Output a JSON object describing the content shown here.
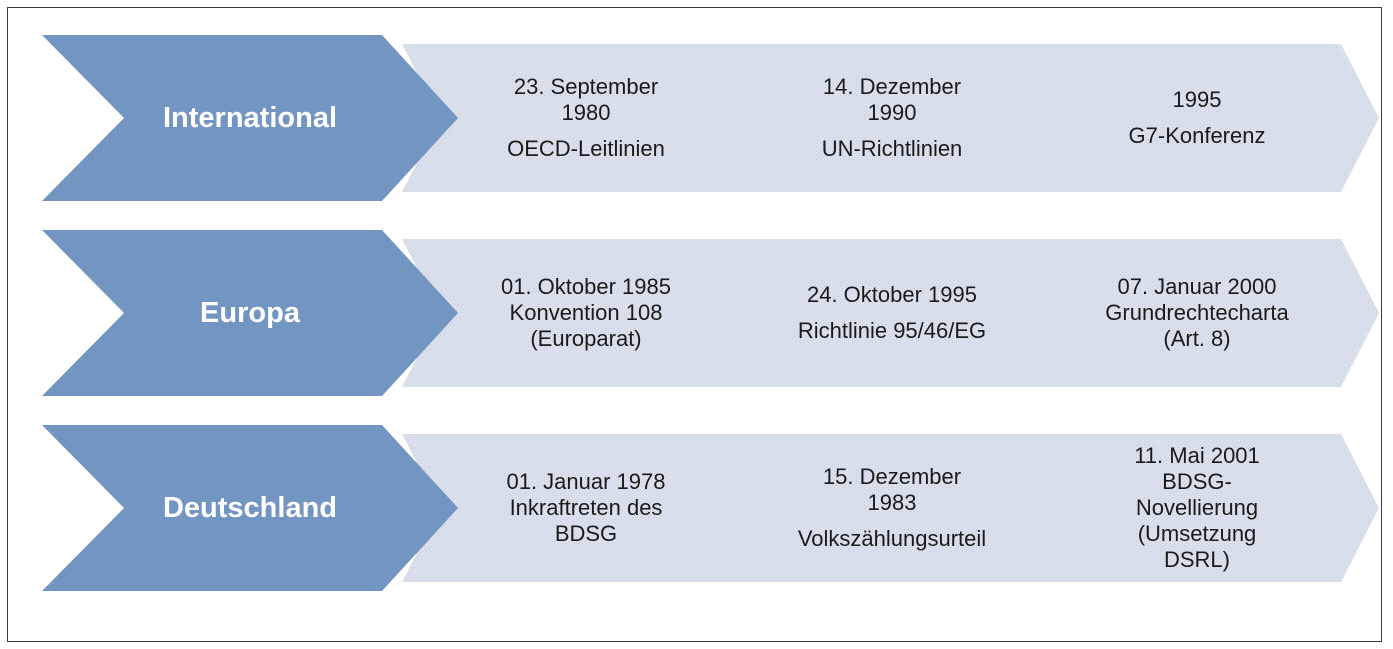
{
  "colors": {
    "category_fill": "#7395c1",
    "step_fill": "#dbe1ec",
    "step_dot": "#c5cedd",
    "frame": "#3a3a3a"
  },
  "rows": [
    {
      "category": "International",
      "steps": [
        {
          "date": [
            "23. September",
            "1980"
          ],
          "event": [
            "OECD-Leitlinien"
          ]
        },
        {
          "date": [
            "14. Dezember",
            "1990"
          ],
          "event": [
            "UN-Richtlinien"
          ]
        },
        {
          "date": [
            "1995"
          ],
          "event": [
            "G7-Konferenz"
          ]
        }
      ]
    },
    {
      "category": "Europa",
      "steps": [
        {
          "date": [
            "01. Oktober 1985"
          ],
          "event": [
            "Konvention 108",
            "(Europarat)"
          ]
        },
        {
          "date": [
            "24. Oktober 1995"
          ],
          "event": [
            "Richtlinie 95/46/EG"
          ]
        },
        {
          "date": [
            "07. Januar 2000"
          ],
          "event": [
            "Grundrechtecharta",
            "(Art. 8)"
          ]
        }
      ]
    },
    {
      "category": "Deutschland",
      "steps": [
        {
          "date": [
            "01. Januar 1978"
          ],
          "event": [
            "Inkraftreten des",
            "BDSG"
          ]
        },
        {
          "date": [
            "15. Dezember",
            "1983"
          ],
          "event": [
            "Volkszählungsurteil"
          ]
        },
        {
          "date": [
            "11. Mai 2001"
          ],
          "event": [
            "BDSG-",
            "Novellierung",
            "(Umsetzung",
            "DSRL)"
          ]
        }
      ]
    }
  ]
}
